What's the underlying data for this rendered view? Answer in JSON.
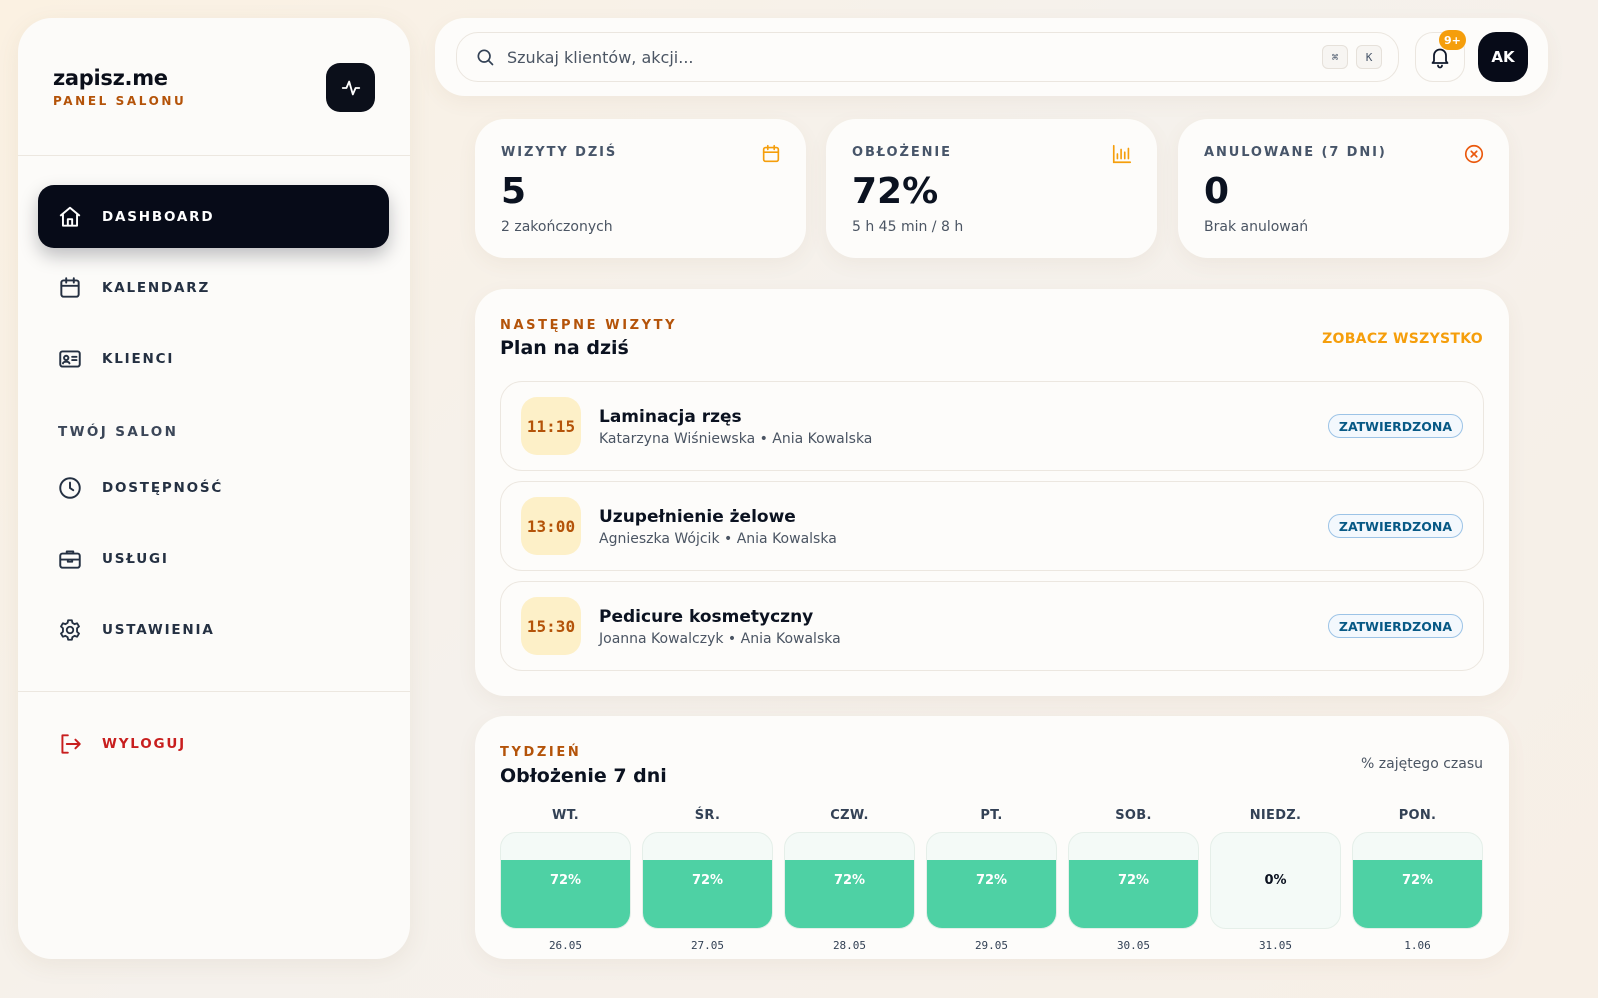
{
  "brand": {
    "name": "zapisz.me",
    "subtitle": "PANEL SALONU",
    "action_icon": "activity-icon"
  },
  "nav": {
    "items": [
      {
        "label": "DASHBOARD",
        "icon": "home-icon",
        "active": true
      },
      {
        "label": "KALENDARZ",
        "icon": "calendar-icon"
      },
      {
        "label": "KLIENCI",
        "icon": "id-card-icon"
      }
    ],
    "section_label": "TWÓJ SALON",
    "salon_items": [
      {
        "label": "DOSTĘPNOŚĆ",
        "icon": "clock-icon"
      },
      {
        "label": "USŁUGI",
        "icon": "briefcase-icon"
      },
      {
        "label": "USTAWIENIA",
        "icon": "gear-icon"
      }
    ],
    "logout": {
      "label": "WYLOGUJ",
      "icon": "logout-icon"
    }
  },
  "search": {
    "placeholder": "Szukaj klientów, akcji...",
    "shortcut_keys": [
      "⌘",
      "K"
    ]
  },
  "notifications": {
    "badge": "9+"
  },
  "user": {
    "initials": "AK"
  },
  "stats": [
    {
      "title": "WIZYTY DZIŚ",
      "value": "5",
      "sub": "2 zakończonych",
      "icon": "calendar-icon"
    },
    {
      "title": "OBŁOŻENIE",
      "value": "72%",
      "sub": "5 h 45 min / 8 h",
      "icon": "bar-chart-icon"
    },
    {
      "title": "ANULOWANE (7 DNI)",
      "value": "0",
      "sub": "Brak anulowań",
      "icon": "x-circle-icon"
    }
  ],
  "upcoming": {
    "eyebrow": "NASTĘPNE WIZYTY",
    "title": "Plan na dziś",
    "see_all": "ZOBACZ WSZYSTKO",
    "appointments": [
      {
        "time": "11:15",
        "service": "Laminacja rzęs",
        "meta": "Katarzyna Wiśniewska • Ania Kowalska",
        "status": "ZATWIERDZONA"
      },
      {
        "time": "13:00",
        "service": "Uzupełnienie żelowe",
        "meta": "Agnieszka Wójcik • Ania Kowalska",
        "status": "ZATWIERDZONA"
      },
      {
        "time": "15:30",
        "service": "Pedicure kosmetyczny",
        "meta": "Joanna Kowalczyk • Ania Kowalska",
        "status": "ZATWIERDZONA"
      }
    ]
  },
  "week": {
    "eyebrow": "TYDZIEŃ",
    "title": "Obłożenie 7 dni",
    "unit_note": "% zajętego czasu",
    "days": [
      {
        "name": "WT.",
        "date": "26.05",
        "percent": 72,
        "label": "72%"
      },
      {
        "name": "ŚR.",
        "date": "27.05",
        "percent": 72,
        "label": "72%"
      },
      {
        "name": "CZW.",
        "date": "28.05",
        "percent": 72,
        "label": "72%"
      },
      {
        "name": "PT.",
        "date": "29.05",
        "percent": 72,
        "label": "72%"
      },
      {
        "name": "SOB.",
        "date": "30.05",
        "percent": 72,
        "label": "72%"
      },
      {
        "name": "NIEDZ.",
        "date": "31.05",
        "percent": 0,
        "label": "0%"
      },
      {
        "name": "PON.",
        "date": "1.06",
        "percent": 72,
        "label": "72%"
      }
    ]
  },
  "colors": {
    "accent": "#f59e0b",
    "brand_sub": "#b45309",
    "dark": "#070b18",
    "bar_fill": "#4ed1a4",
    "logout": "#c81e1e"
  }
}
